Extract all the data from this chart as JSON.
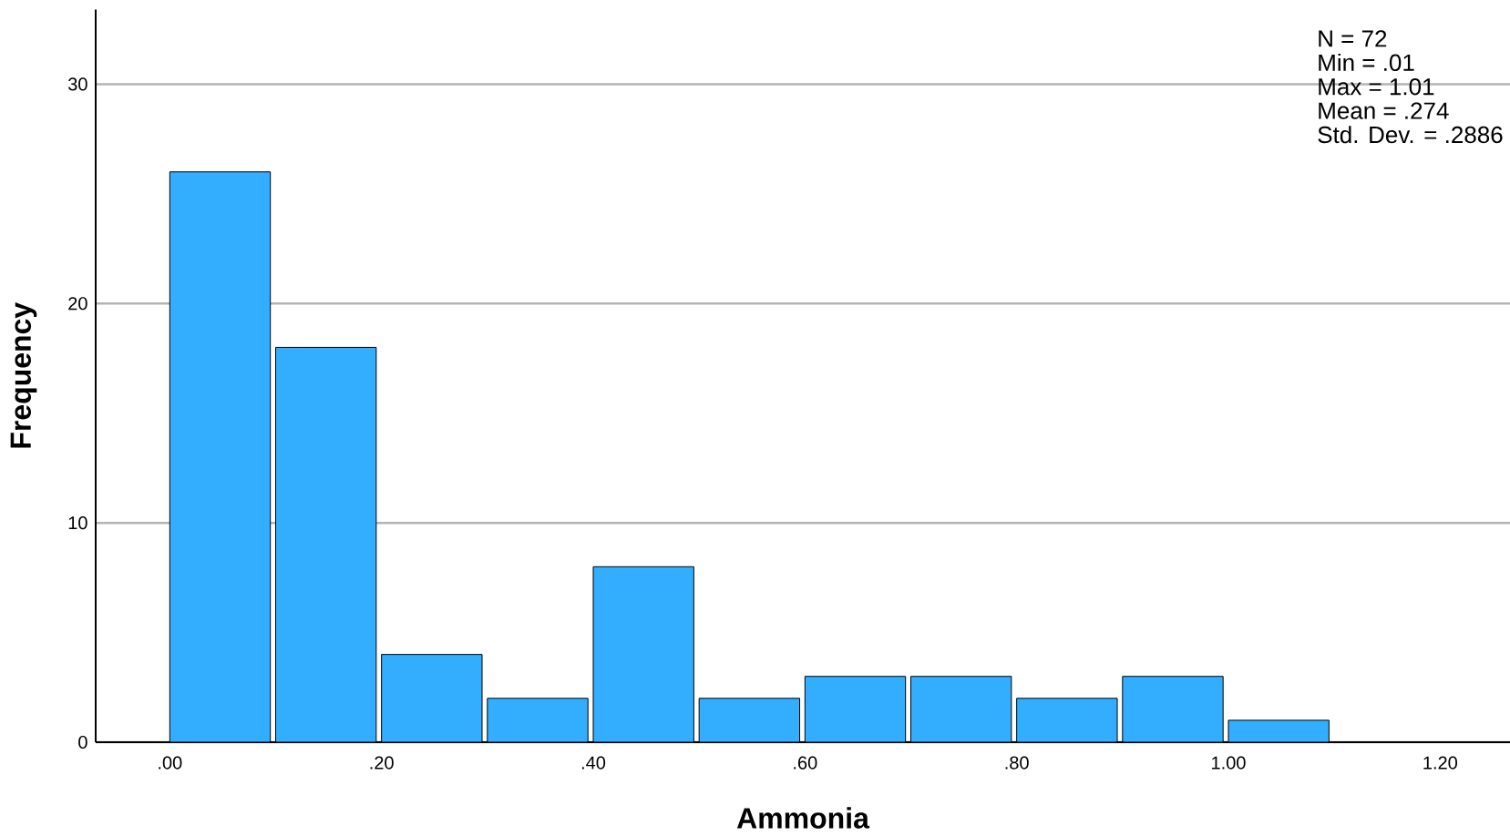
{
  "chart_data": {
    "type": "histogram",
    "xlabel": "Ammonia",
    "ylabel": "Frequency",
    "bins": [
      0,
      0.1,
      0.2,
      0.3,
      0.4,
      0.5,
      0.6,
      0.7,
      0.8,
      0.9,
      1.0,
      1.1
    ],
    "values": [
      26,
      18,
      4,
      2,
      8,
      2,
      3,
      3,
      2,
      3,
      1
    ],
    "color": "#33aeff",
    "xlim": [
      -0.07,
      1.266
    ],
    "xticks": [
      {
        "value": 0,
        "label": ".00"
      },
      {
        "value": 0.2,
        "label": ".20"
      },
      {
        "value": 0.4,
        "label": ".40"
      },
      {
        "value": 0.6,
        "label": ".60"
      },
      {
        "value": 0.8,
        "label": ".80"
      },
      {
        "value": 1.0,
        "label": "1.00"
      },
      {
        "value": 1.2,
        "label": "1.20"
      }
    ],
    "ylim": [
      0,
      33.4
    ],
    "yticks": [
      0,
      10,
      20,
      30
    ],
    "grid": "y",
    "annotations": [
      "N = 72",
      "Min = .01",
      "Max = 1.01",
      "Mean = .274",
      "Std. Dev. = .2886"
    ]
  }
}
